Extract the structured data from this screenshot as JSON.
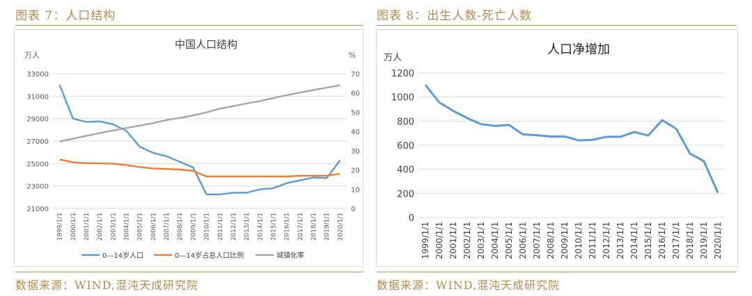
{
  "left": {
    "figure_label": "图表 7：人口结构",
    "source": "数据来源：WIND,混沌天成研究院"
  },
  "right": {
    "figure_label": "图表 8：出生人数-死亡人数",
    "source": "数据来源：WIND,混沌天成研究院"
  },
  "colors": {
    "gold": "#b58a4c",
    "blue": "#5b9bd5",
    "orange": "#ed7d31",
    "gray": "#a5a5a5"
  },
  "chart_data": [
    {
      "type": "line",
      "title": "中国人口结构",
      "ylabel_left": "万人",
      "ylabel_right": "%",
      "ylim_left": [
        21000,
        33000
      ],
      "ylim_right": [
        0,
        70
      ],
      "yticks_left": [
        21000,
        23000,
        25000,
        27000,
        29000,
        31000,
        33000
      ],
      "yticks_right": [
        0,
        10,
        20,
        30,
        40,
        50,
        60,
        70
      ],
      "categories": [
        "1999/1/1",
        "2000/1/1",
        "2001/1/1",
        "2002/1/1",
        "2003/1/1",
        "2004/1/1",
        "2005/1/1",
        "2006/1/1",
        "2007/1/1",
        "2008/1/1",
        "2009/1/1",
        "2010/1/1",
        "2011/1/1",
        "2012/1/1",
        "2013/1/1",
        "2014/1/1",
        "2015/1/1",
        "2016/1/1",
        "2017/1/1",
        "2018/1/1",
        "2019/1/1",
        "2020/1/1"
      ],
      "legend_position": "bottom",
      "series": [
        {
          "name": "0—14岁人口",
          "axis": "left",
          "color": "#5b9bd5",
          "values": [
            32000,
            29000,
            28700,
            28750,
            28500,
            27900,
            26500,
            25950,
            25650,
            25150,
            24650,
            22250,
            22250,
            22400,
            22400,
            22700,
            22800,
            23250,
            23500,
            23750,
            23700,
            25300
          ]
        },
        {
          "name": "0—14岁占总人口比例",
          "axis": "right",
          "color": "#ed7d31",
          "values": [
            25.4,
            24.0,
            23.5,
            23.5,
            23.2,
            22.5,
            21.5,
            20.8,
            20.5,
            20.2,
            19.5,
            16.6,
            16.6,
            16.6,
            16.6,
            16.6,
            16.6,
            16.6,
            17.0,
            17.0,
            17.0,
            18.0
          ]
        },
        {
          "name": "城镇化率",
          "axis": "right",
          "color": "#a5a5a5",
          "values": [
            34.8,
            36.2,
            37.7,
            39.1,
            40.5,
            41.8,
            43.0,
            44.3,
            45.9,
            47.0,
            48.3,
            49.9,
            51.8,
            53.1,
            54.5,
            55.8,
            57.3,
            58.8,
            60.2,
            61.5,
            62.7,
            64.0
          ]
        }
      ]
    },
    {
      "type": "line",
      "title": "人口净增加",
      "ylabel": "万人",
      "ylim": [
        0,
        1200
      ],
      "yticks": [
        0,
        200,
        400,
        600,
        800,
        1000,
        1200
      ],
      "categories": [
        "1999/1/1",
        "2000/1/1",
        "2001/1/1",
        "2002/1/1",
        "2003/1/1",
        "2004/1/1",
        "2005/1/1",
        "2006/1/1",
        "2007/1/1",
        "2008/1/1",
        "2009/1/1",
        "2010/1/1",
        "2011/1/1",
        "2012/1/1",
        "2013/1/1",
        "2014/1/1",
        "2015/1/1",
        "2016/1/1",
        "2017/1/1",
        "2018/1/1",
        "2019/1/1",
        "2020/1/1"
      ],
      "series": [
        {
          "name": "",
          "color": "#5b9bd5",
          "values": [
            1100,
            955,
            885,
            825,
            775,
            760,
            768,
            690,
            683,
            672,
            672,
            640,
            645,
            670,
            670,
            710,
            680,
            808,
            738,
            530,
            467,
            204
          ]
        }
      ]
    }
  ]
}
